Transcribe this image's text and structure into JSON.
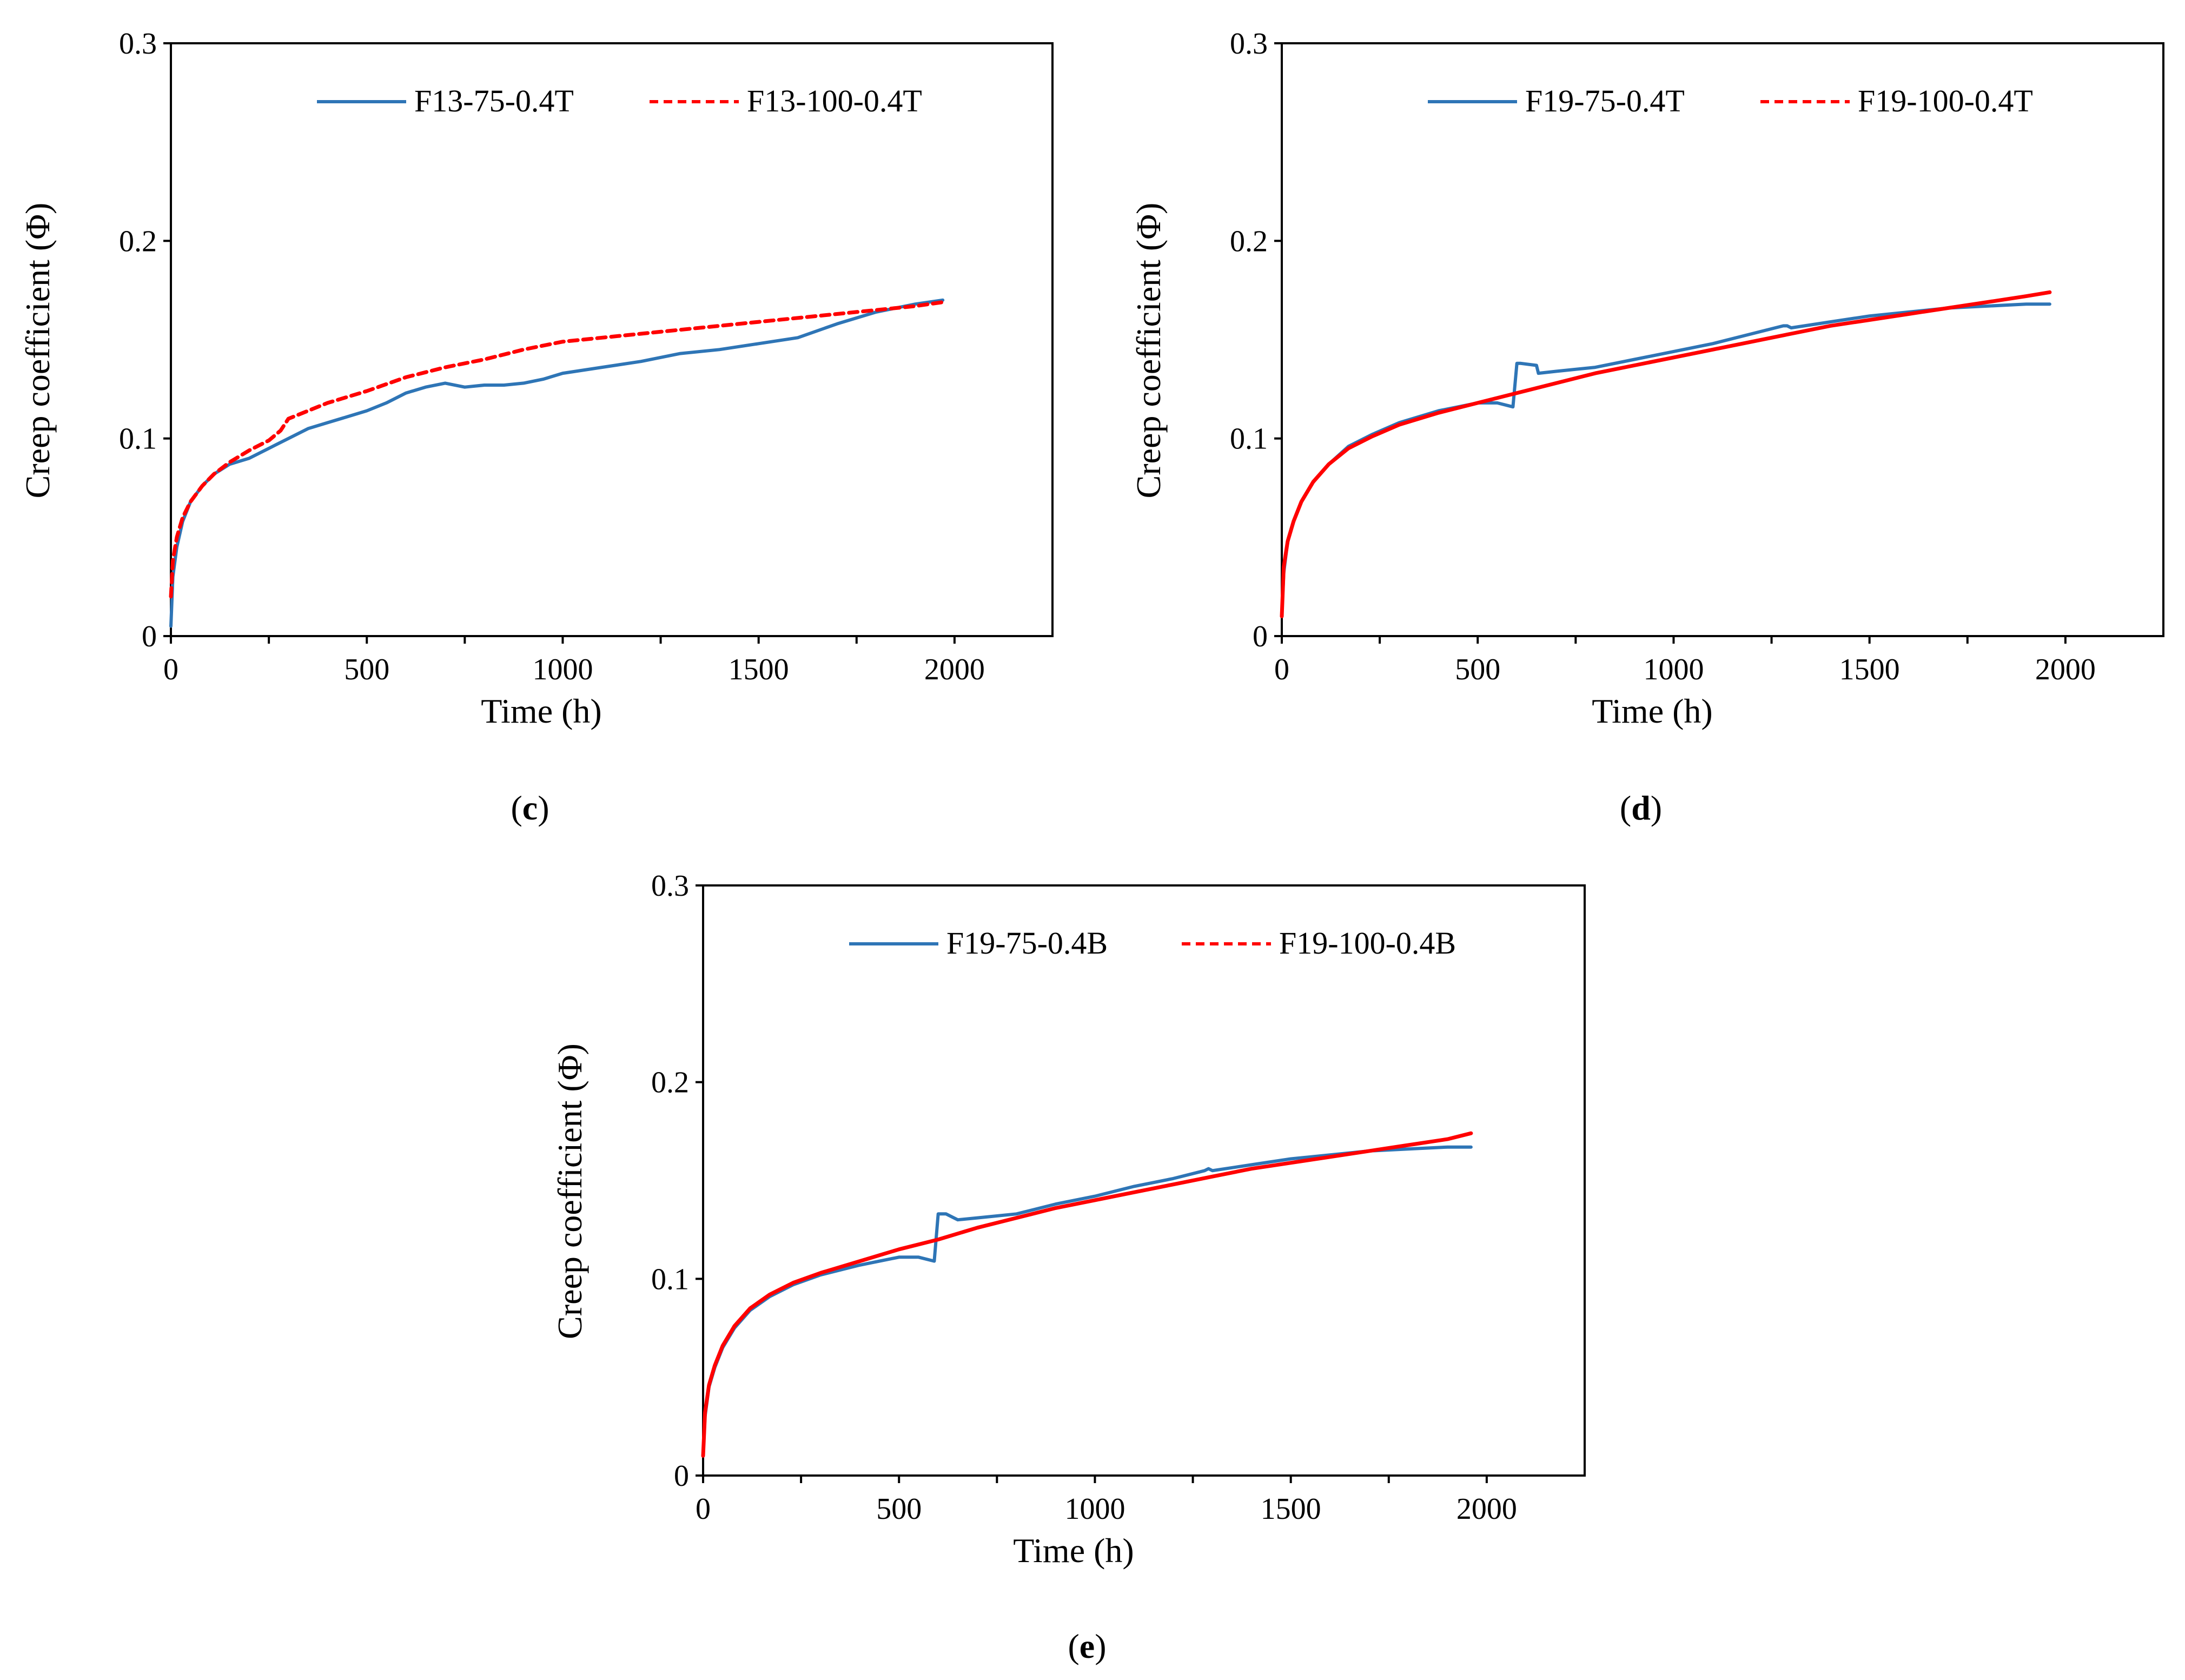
{
  "chart_data": [
    {
      "id": "c",
      "panel_label": "c",
      "type": "line",
      "xlabel": "Time (h)",
      "ylabel": "Creep coefficient  (Φ)",
      "xlim": [
        0,
        2250
      ],
      "ylim": [
        0,
        0.3
      ],
      "x_ticks": [
        "0",
        "500",
        "1000",
        "1500",
        "2000"
      ],
      "x_tick_values": [
        0,
        500,
        1000,
        1500,
        2000
      ],
      "y_ticks": [
        "0",
        "0.1",
        "0.2",
        "0.3"
      ],
      "y_tick_values": [
        0,
        0.1,
        0.2,
        0.3
      ],
      "legend_position": "top",
      "colors": {
        "series1": "#2e75b6",
        "series2": "#ff0000"
      },
      "series": [
        {
          "name": "F13-75-0.4T",
          "style": "solid",
          "x": [
            0,
            5,
            15,
            30,
            50,
            80,
            110,
            150,
            200,
            250,
            300,
            350,
            400,
            450,
            500,
            550,
            600,
            650,
            700,
            750,
            800,
            850,
            900,
            950,
            1000,
            1100,
            1200,
            1300,
            1400,
            1500,
            1600,
            1700,
            1800,
            1900,
            1970
          ],
          "y": [
            0.005,
            0.03,
            0.045,
            0.058,
            0.068,
            0.076,
            0.082,
            0.087,
            0.09,
            0.095,
            0.1,
            0.105,
            0.108,
            0.111,
            0.114,
            0.118,
            0.123,
            0.126,
            0.128,
            0.126,
            0.127,
            0.127,
            0.128,
            0.13,
            0.133,
            0.136,
            0.139,
            0.143,
            0.145,
            0.148,
            0.151,
            0.158,
            0.164,
            0.168,
            0.17
          ]
        },
        {
          "name": "F13-100-0.4T",
          "style": "dashed",
          "x": [
            0,
            5,
            15,
            30,
            50,
            80,
            110,
            150,
            200,
            250,
            280,
            300,
            350,
            400,
            500,
            600,
            700,
            800,
            900,
            1000,
            1100,
            1200,
            1300,
            1400,
            1500,
            1600,
            1700,
            1800,
            1900,
            1970
          ],
          "y": [
            0.02,
            0.038,
            0.05,
            0.06,
            0.068,
            0.076,
            0.082,
            0.088,
            0.094,
            0.099,
            0.104,
            0.11,
            0.114,
            0.118,
            0.124,
            0.131,
            0.136,
            0.14,
            0.145,
            0.149,
            0.151,
            0.153,
            0.155,
            0.157,
            0.159,
            0.161,
            0.163,
            0.165,
            0.167,
            0.169
          ]
        }
      ]
    },
    {
      "id": "d",
      "panel_label": "d",
      "type": "line",
      "xlabel": "Time (h)",
      "ylabel": "Creep coefficient  (Φ)",
      "xlim": [
        0,
        2250
      ],
      "ylim": [
        0,
        0.3
      ],
      "x_ticks": [
        "0",
        "500",
        "1000",
        "1500",
        "2000"
      ],
      "x_tick_values": [
        0,
        500,
        1000,
        1500,
        2000
      ],
      "y_ticks": [
        "0",
        "0.1",
        "0.2",
        "0.3"
      ],
      "y_tick_values": [
        0,
        0.1,
        0.2,
        0.3
      ],
      "legend_position": "top",
      "colors": {
        "series1": "#2e75b6",
        "series2": "#ff0000"
      },
      "series": [
        {
          "name": "F19-75-0.4T",
          "style": "solid",
          "x": [
            0,
            5,
            15,
            30,
            50,
            80,
            120,
            170,
            230,
            300,
            400,
            500,
            550,
            590,
            600,
            610,
            650,
            655,
            700,
            800,
            900,
            1000,
            1100,
            1200,
            1280,
            1290,
            1300,
            1400,
            1500,
            1600,
            1700,
            1800,
            1900,
            1960
          ],
          "y": [
            0.01,
            0.032,
            0.048,
            0.058,
            0.068,
            0.078,
            0.087,
            0.096,
            0.102,
            0.108,
            0.114,
            0.118,
            0.118,
            0.116,
            0.138,
            0.138,
            0.137,
            0.133,
            0.134,
            0.136,
            0.14,
            0.144,
            0.148,
            0.153,
            0.157,
            0.157,
            0.156,
            0.159,
            0.162,
            0.164,
            0.166,
            0.167,
            0.168,
            0.168
          ]
        },
        {
          "name": "F19-100-0.4T",
          "style": "dashed",
          "x": [
            0,
            5,
            15,
            30,
            50,
            80,
            120,
            170,
            230,
            300,
            400,
            500,
            600,
            700,
            800,
            900,
            1000,
            1100,
            1200,
            1300,
            1400,
            1500,
            1600,
            1700,
            1800,
            1900,
            1960
          ],
          "y": [
            0.01,
            0.035,
            0.048,
            0.058,
            0.068,
            0.078,
            0.087,
            0.095,
            0.101,
            0.107,
            0.113,
            0.118,
            0.123,
            0.128,
            0.133,
            0.137,
            0.141,
            0.145,
            0.149,
            0.153,
            0.157,
            0.16,
            0.163,
            0.166,
            0.169,
            0.172,
            0.174
          ]
        }
      ]
    },
    {
      "id": "e",
      "panel_label": "e",
      "type": "line",
      "xlabel": "Time (h)",
      "ylabel": "Creep coefficient  (Φ)",
      "xlim": [
        0,
        2250
      ],
      "ylim": [
        0,
        0.3
      ],
      "x_ticks": [
        "0",
        "500",
        "1000",
        "1500",
        "2000"
      ],
      "x_tick_values": [
        0,
        500,
        1000,
        1500,
        2000
      ],
      "y_ticks": [
        "0",
        "0.1",
        "0.2",
        "0.3"
      ],
      "y_tick_values": [
        0,
        0.1,
        0.2,
        0.3
      ],
      "legend_position": "top",
      "colors": {
        "series1": "#2e75b6",
        "series2": "#ff0000"
      },
      "series": [
        {
          "name": "F19-75-0.4B",
          "style": "solid",
          "x": [
            0,
            5,
            15,
            30,
            50,
            80,
            120,
            170,
            230,
            300,
            400,
            500,
            550,
            590,
            600,
            620,
            640,
            650,
            700,
            800,
            900,
            1000,
            1100,
            1200,
            1280,
            1290,
            1300,
            1400,
            1500,
            1600,
            1700,
            1800,
            1900,
            1960
          ],
          "y": [
            0.01,
            0.03,
            0.045,
            0.055,
            0.065,
            0.075,
            0.084,
            0.091,
            0.097,
            0.102,
            0.107,
            0.111,
            0.111,
            0.109,
            0.133,
            0.133,
            0.131,
            0.13,
            0.131,
            0.133,
            0.138,
            0.142,
            0.147,
            0.151,
            0.155,
            0.156,
            0.155,
            0.158,
            0.161,
            0.163,
            0.165,
            0.166,
            0.167,
            0.167
          ]
        },
        {
          "name": "F19-100-0.4B",
          "style": "dashed",
          "x": [
            0,
            5,
            15,
            30,
            50,
            80,
            120,
            170,
            230,
            300,
            400,
            500,
            600,
            700,
            800,
            900,
            1000,
            1100,
            1200,
            1300,
            1400,
            1500,
            1600,
            1700,
            1800,
            1900,
            1960
          ],
          "y": [
            0.01,
            0.032,
            0.046,
            0.056,
            0.066,
            0.076,
            0.085,
            0.092,
            0.098,
            0.103,
            0.109,
            0.115,
            0.12,
            0.126,
            0.131,
            0.136,
            0.14,
            0.144,
            0.148,
            0.152,
            0.156,
            0.159,
            0.162,
            0.165,
            0.168,
            0.171,
            0.174
          ]
        }
      ]
    }
  ]
}
